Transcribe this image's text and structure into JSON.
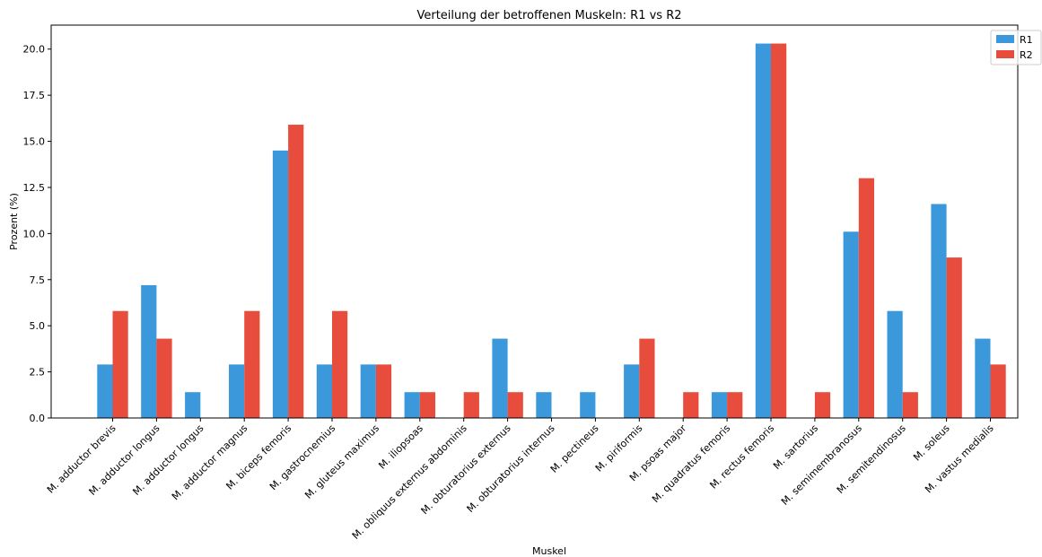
{
  "chart_data": {
    "type": "bar",
    "title": "Verteilung der betroffenen Muskeln: R1 vs R2",
    "xlabel": "Muskel",
    "ylabel": "Prozent (%)",
    "ylim": [
      0,
      21.3
    ],
    "yticks": [
      0.0,
      2.5,
      5.0,
      7.5,
      10.0,
      12.5,
      15.0,
      17.5,
      20.0
    ],
    "ytick_labels": [
      "0.0",
      "2.5",
      "5.0",
      "7.5",
      "10.0",
      "12.5",
      "15.0",
      "17.5",
      "20.0"
    ],
    "grid": false,
    "legend_position": "top-right",
    "categories": [
      "M. adductor brevis",
      "M. adductor longus",
      "M. adductor longus ",
      "M. adductor magnus",
      "M. biceps femoris",
      "M. gastrocnemius",
      "M. gluteus maximus",
      "M. iliopsoas",
      "M. obliquus externus abdominis",
      "M. obturatorius externus",
      "M. obturatorius internus",
      "M. pectineus",
      "M. piriformis",
      "M. psoas major",
      "M. quadratus femoris",
      "M. rectus femoris",
      "M. sartorius",
      "M. semimembranosus",
      "M. semitendinosus",
      "M. soleus",
      "M. vastus medialis"
    ],
    "series": [
      {
        "name": "R1",
        "color": "#3a98db",
        "values": [
          2.9,
          7.2,
          1.4,
          2.9,
          14.5,
          2.9,
          2.9,
          1.4,
          0,
          4.3,
          1.4,
          1.4,
          2.9,
          0,
          1.4,
          20.3,
          0,
          10.1,
          5.8,
          11.6,
          4.3
        ]
      },
      {
        "name": "R2",
        "color": "#e74c3c",
        "values": [
          5.8,
          4.3,
          0,
          5.8,
          15.9,
          5.8,
          2.9,
          1.4,
          1.4,
          1.4,
          0,
          0,
          4.3,
          1.4,
          1.4,
          20.3,
          1.4,
          13.0,
          1.4,
          8.7,
          2.9
        ]
      }
    ]
  }
}
